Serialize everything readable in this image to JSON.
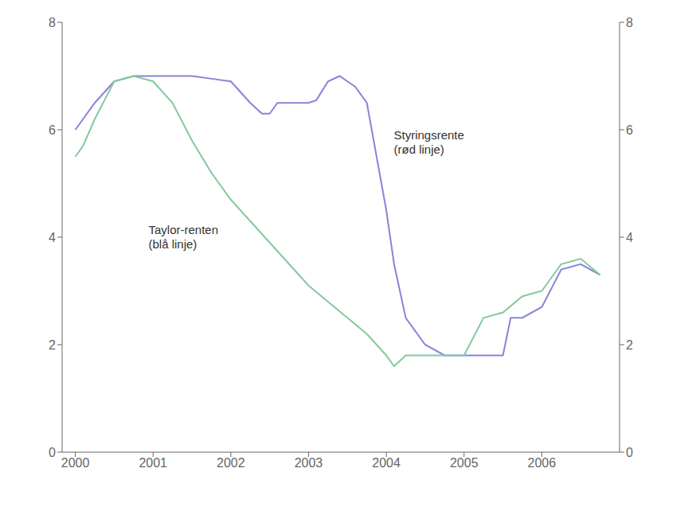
{
  "chart_data": {
    "type": "line",
    "xlim": [
      1999.83,
      2007.0
    ],
    "xticks": [
      2000,
      2001,
      2002,
      2003,
      2004,
      2005,
      2006
    ],
    "ylim": [
      0,
      8
    ],
    "yticks": [
      0,
      2,
      4,
      6,
      8
    ],
    "y2lim": [
      0,
      8
    ],
    "y2ticks": [
      0,
      2,
      4,
      6,
      8
    ],
    "grid": false,
    "annotations": [
      "Styringsrente\n(rød linje)",
      "Taylor-renten\n(blå linje)"
    ],
    "series": [
      {
        "x": [
          2000.0,
          2000.1,
          2000.25,
          2000.5,
          2000.75,
          2001.0,
          2001.1,
          2001.25,
          2001.5,
          2001.75,
          2002.0,
          2002.25,
          2002.4,
          2002.5,
          2002.6,
          2002.75,
          2003.0,
          2003.1,
          2003.25,
          2003.4,
          2003.5,
          2003.6,
          2003.75,
          2004.0,
          2004.1,
          2004.25,
          2004.5,
          2004.75,
          2005.0,
          2005.25,
          2005.5,
          2005.6,
          2005.75,
          2006.0,
          2006.25,
          2006.5,
          2006.75
        ],
        "values": [
          6.0,
          6.2,
          6.5,
          6.9,
          7.0,
          7.0,
          7.0,
          7.0,
          7.0,
          6.95,
          6.9,
          6.5,
          6.3,
          6.3,
          6.5,
          6.5,
          6.5,
          6.55,
          6.9,
          7.0,
          6.9,
          6.8,
          6.5,
          4.5,
          3.5,
          2.5,
          2.0,
          1.8,
          1.8,
          1.8,
          1.8,
          2.5,
          2.5,
          2.7,
          3.4,
          3.5,
          3.3
        ]
      },
      {
        "x": [
          2000.0,
          2000.1,
          2000.25,
          2000.5,
          2000.75,
          2001.0,
          2001.25,
          2001.5,
          2001.75,
          2002.0,
          2002.25,
          2002.5,
          2002.75,
          2003.0,
          2003.25,
          2003.5,
          2003.75,
          2004.0,
          2004.1,
          2004.25,
          2004.5,
          2004.75,
          2005.0,
          2005.25,
          2005.5,
          2005.75,
          2006.0,
          2006.25,
          2006.5,
          2006.75
        ],
        "values": [
          5.5,
          5.7,
          6.2,
          6.9,
          7.0,
          6.9,
          6.5,
          5.8,
          5.2,
          4.7,
          4.3,
          3.9,
          3.5,
          3.1,
          2.8,
          2.5,
          2.2,
          1.8,
          1.6,
          1.8,
          1.8,
          1.8,
          1.8,
          2.5,
          2.6,
          2.9,
          3.0,
          3.5,
          3.6,
          3.3
        ]
      }
    ]
  }
}
